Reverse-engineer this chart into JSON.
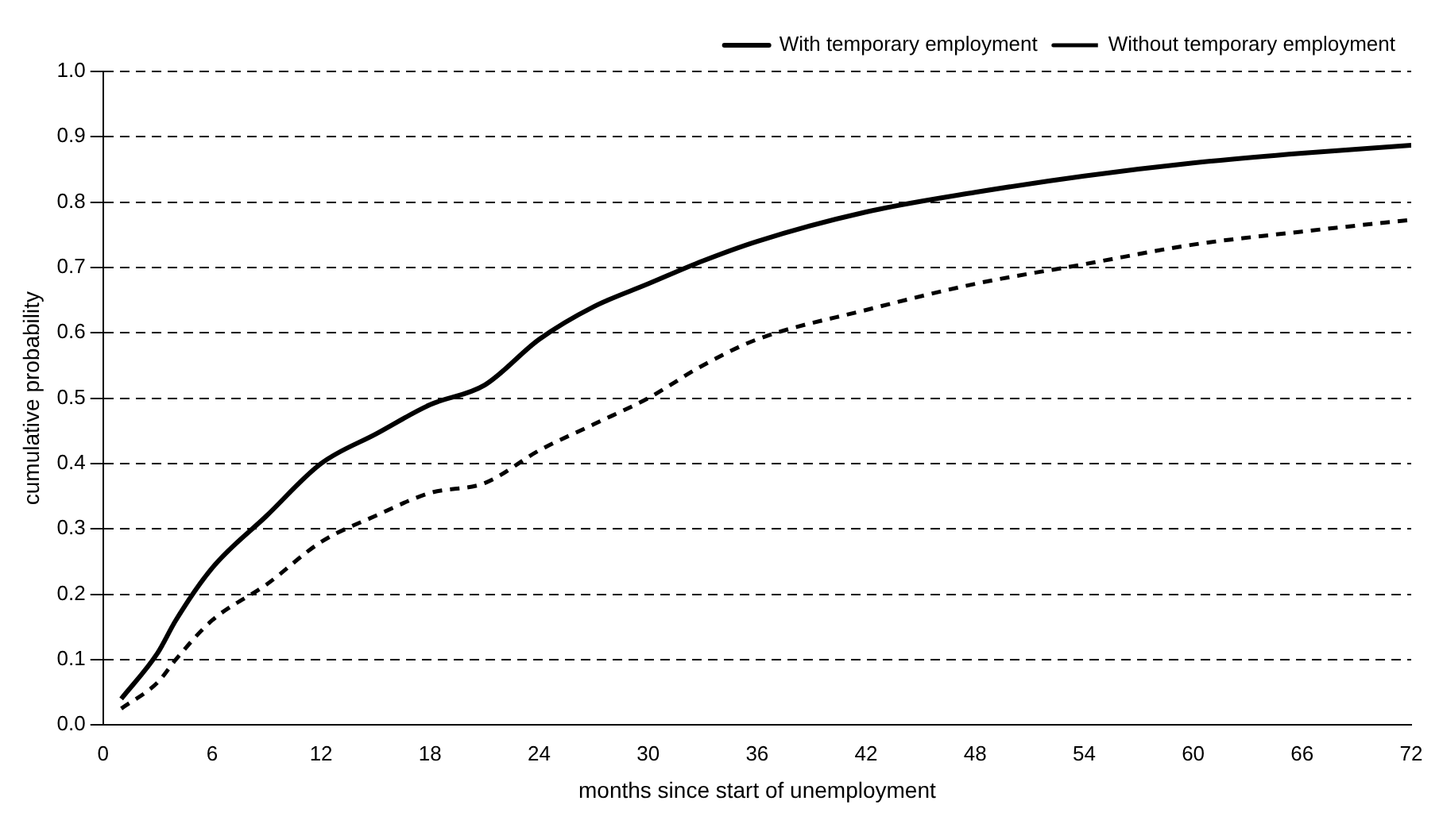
{
  "chart_data": {
    "type": "line",
    "xlabel": "months since start of unemployment",
    "ylabel": "cumulative probability",
    "xlim": [
      0,
      72
    ],
    "xticks": [
      0,
      6,
      12,
      18,
      24,
      30,
      36,
      42,
      48,
      54,
      60,
      66,
      72
    ],
    "ylim": [
      0,
      1
    ],
    "yticks": [
      {
        "value": 0,
        "label": "0.0"
      },
      {
        "value": 0.1,
        "label": "0.1"
      },
      {
        "value": 0.2,
        "label": "0.2"
      },
      {
        "value": 0.3,
        "label": "0.3"
      },
      {
        "value": 0.4,
        "label": "0.4"
      },
      {
        "value": 0.5,
        "label": "0.5"
      },
      {
        "value": 0.6,
        "label": "0.6"
      },
      {
        "value": 0.7,
        "label": "0.7"
      },
      {
        "value": 0.8,
        "label": "0.8"
      },
      {
        "value": 0.9,
        "label": "0.9"
      },
      {
        "value": 1,
        "label": "1.0"
      }
    ],
    "grid": "y",
    "legend": "top right",
    "marker": "none",
    "x": [
      1,
      3,
      4,
      6,
      9,
      12,
      15,
      18,
      21,
      24,
      27,
      30,
      33,
      36,
      42,
      48,
      54,
      60,
      66,
      72
    ],
    "series": [
      {
        "name": "With temporary employment",
        "color": "#000000",
        "line_style": "solid",
        "values": [
          0.04,
          0.11,
          0.16,
          0.24,
          0.32,
          0.4,
          0.445,
          0.49,
          0.52,
          0.59,
          0.64,
          0.675,
          0.71,
          0.74,
          0.785,
          0.815,
          0.84,
          0.86,
          0.875,
          0.887
        ]
      },
      {
        "name": "Without temporary employment",
        "color": "#000000",
        "line_style": "dashed",
        "values": [
          0.025,
          0.065,
          0.1,
          0.16,
          0.215,
          0.28,
          0.32,
          0.355,
          0.37,
          0.42,
          0.46,
          0.5,
          0.55,
          0.59,
          0.635,
          0.675,
          0.705,
          0.735,
          0.755,
          0.773
        ]
      }
    ]
  }
}
